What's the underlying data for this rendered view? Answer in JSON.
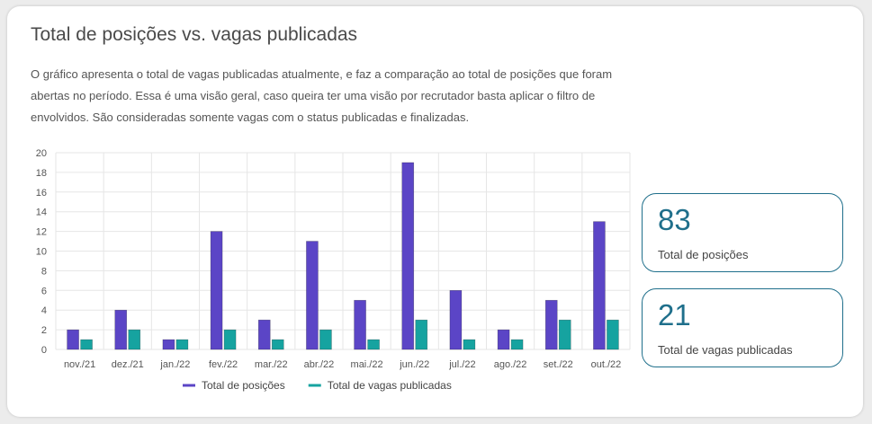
{
  "card": {
    "title": "Total de posições vs. vagas publicadas",
    "description": "O gráfico apresenta o total de vagas publicadas atualmente, e faz a comparação ao total de posições que foram abertas no período. Essa é uma visão geral, caso queira ter uma visão por recrutador basta aplicar o filtro de envolvidos. São consideradas somente vagas com o status publicadas e finalizadas."
  },
  "kpis": [
    {
      "value": "83",
      "label": "Total de posições"
    },
    {
      "value": "21",
      "label": "Total de vagas publicadas"
    }
  ],
  "chart_data": {
    "type": "bar",
    "title": "",
    "xlabel": "",
    "ylabel": "",
    "categories": [
      "nov./21",
      "dez./21",
      "jan./22",
      "fev./22",
      "mar./22",
      "abr./22",
      "mai./22",
      "jun./22",
      "jul./22",
      "ago./22",
      "set./22",
      "out./22"
    ],
    "series": [
      {
        "name": "Total de posições",
        "color": "#5b45c6",
        "values": [
          2,
          4,
          1,
          12,
          3,
          11,
          5,
          19,
          6,
          2,
          5,
          13
        ]
      },
      {
        "name": "Total de vagas publicadas",
        "color": "#16a3a0",
        "values": [
          1,
          2,
          1,
          2,
          1,
          2,
          1,
          3,
          1,
          1,
          3,
          3
        ]
      }
    ],
    "ylim": [
      0,
      20
    ],
    "yticks": [
      0,
      2,
      4,
      6,
      8,
      10,
      12,
      14,
      16,
      18,
      20
    ],
    "grid": true,
    "legend": "bottom"
  }
}
